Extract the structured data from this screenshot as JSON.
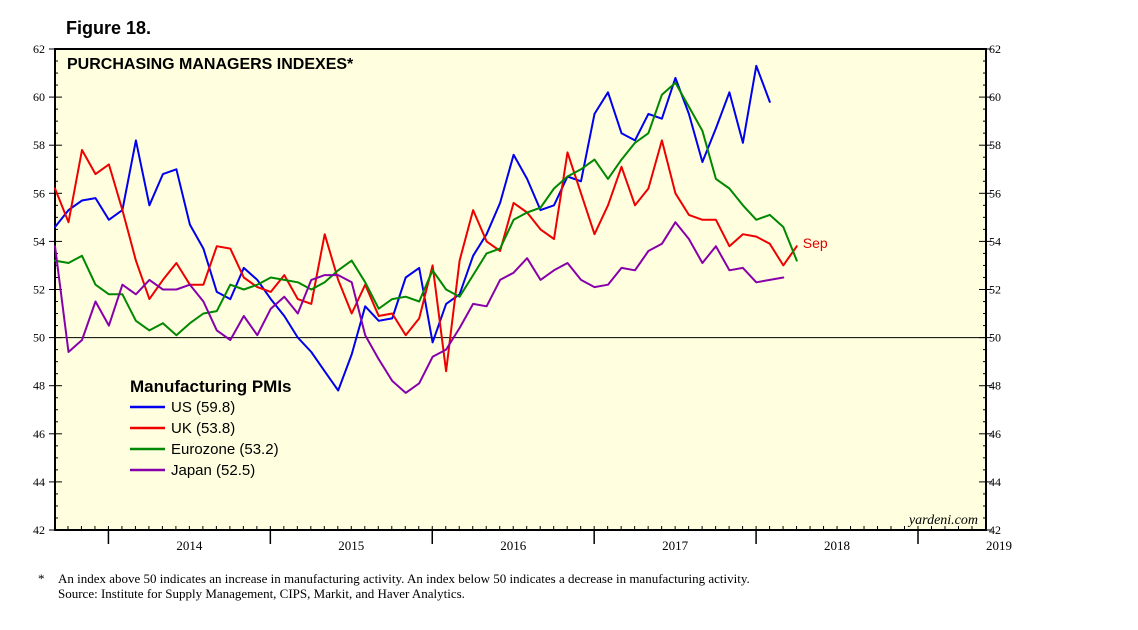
{
  "figure_label": "Figure 18.",
  "footnote": "An index above 50 indicates an increase in manufacturing activity. An index below 50 indicates a decrease in manufacturing activity.",
  "footnote_marker": "*",
  "source": "Source: Institute for Supply Management, CIPS, Markit, and Haver Analytics.",
  "chart_data": {
    "type": "line",
    "title": "PURCHASING MANAGERS INDEXES*",
    "legend_title": "Manufacturing PMIs",
    "legend_position": "lower-left",
    "watermark": "yardeni.com",
    "end_label": "Sep",
    "end_label_color": "#e00000",
    "background_color": "#ffffe0",
    "ylim": [
      42,
      62
    ],
    "yticks": [
      42,
      44,
      46,
      48,
      50,
      52,
      54,
      56,
      58,
      60,
      62
    ],
    "reference_line": 50,
    "x_range": [
      2013.67,
      2019.42
    ],
    "x_year_labels": [
      "2014",
      "2015",
      "2016",
      "2017",
      "2018",
      "2019"
    ],
    "x_year_boundaries": [
      2014,
      2015,
      2016,
      2017,
      2018,
      2019
    ],
    "start": 2013.67,
    "step": 0.0833,
    "series": [
      {
        "name": "US",
        "legend": "US (59.8)",
        "color": "#0000ee",
        "values": [
          54.6,
          55.3,
          55.7,
          55.8,
          54.9,
          55.3,
          58.2,
          55.5,
          56.8,
          57.0,
          54.7,
          53.7,
          51.9,
          51.6,
          52.9,
          52.4,
          51.6,
          50.9,
          50.0,
          49.4,
          48.6,
          47.8,
          49.3,
          51.3,
          50.7,
          50.8,
          52.5,
          52.9,
          49.8,
          51.4,
          51.8,
          53.4,
          54.3,
          55.6,
          57.6,
          56.6,
          55.3,
          55.5,
          56.7,
          56.5,
          59.3,
          60.2,
          58.5,
          58.2,
          59.3,
          59.1,
          60.8,
          59.3,
          57.3,
          58.7,
          60.2,
          58.1,
          61.3,
          59.8
        ]
      },
      {
        "name": "UK",
        "legend": "UK (53.8)",
        "color": "#ee0000",
        "values": [
          56.2,
          54.8,
          57.8,
          56.8,
          57.2,
          55.3,
          53.2,
          51.6,
          52.4,
          53.1,
          52.2,
          52.2,
          53.8,
          53.7,
          52.5,
          52.1,
          51.9,
          52.6,
          51.6,
          51.4,
          54.3,
          52.4,
          51.0,
          52.2,
          50.9,
          51.0,
          50.1,
          50.8,
          53.0,
          48.6,
          53.2,
          55.3,
          54.0,
          53.6,
          55.6,
          55.2,
          54.5,
          54.1,
          57.7,
          56.0,
          54.3,
          55.5,
          57.1,
          55.5,
          56.2,
          58.2,
          56.0,
          55.1,
          54.9,
          54.9,
          53.8,
          54.3,
          54.2,
          53.9,
          53.0,
          53.8
        ]
      },
      {
        "name": "Eurozone",
        "legend": "Eurozone (53.2)",
        "color": "#008800",
        "values": [
          53.2,
          53.1,
          53.4,
          52.2,
          51.8,
          51.8,
          50.7,
          50.3,
          50.6,
          50.1,
          50.6,
          51.0,
          51.1,
          52.2,
          52.0,
          52.2,
          52.5,
          52.4,
          52.3,
          52.0,
          52.3,
          52.8,
          53.2,
          52.3,
          51.2,
          51.6,
          51.7,
          51.5,
          52.8,
          52.0,
          51.7,
          52.6,
          53.5,
          53.7,
          54.9,
          55.2,
          55.4,
          56.2,
          56.7,
          57.0,
          57.4,
          56.6,
          57.4,
          58.1,
          58.5,
          60.1,
          60.6,
          59.6,
          58.6,
          56.6,
          56.2,
          55.5,
          54.9,
          55.1,
          54.6,
          53.2
        ]
      },
      {
        "name": "Japan",
        "legend": "Japan (52.5)",
        "color": "#8800aa",
        "values": [
          53.8,
          49.4,
          49.9,
          51.5,
          50.5,
          52.2,
          51.8,
          52.4,
          52.0,
          52.0,
          52.2,
          51.5,
          50.3,
          49.9,
          50.9,
          50.1,
          51.2,
          51.7,
          51.0,
          52.4,
          52.6,
          52.6,
          52.3,
          50.1,
          49.1,
          48.2,
          47.7,
          48.1,
          49.2,
          49.5,
          50.4,
          51.4,
          51.3,
          52.4,
          52.7,
          53.3,
          52.4,
          52.8,
          53.1,
          52.4,
          52.1,
          52.2,
          52.9,
          52.8,
          53.6,
          53.9,
          54.8,
          54.1,
          53.1,
          53.8,
          52.8,
          52.9,
          52.3,
          52.4,
          52.5
        ]
      }
    ]
  }
}
